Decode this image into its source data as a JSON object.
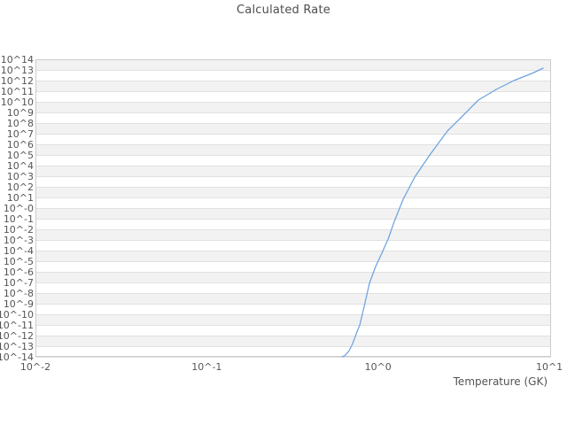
{
  "chart_data": {
    "type": "line",
    "title": "Calculated Rate",
    "xlabel": "Temperature (GK)",
    "ylabel": "",
    "x_scale": "log",
    "y_scale": "log",
    "xlim_log10": [
      -2,
      1.01
    ],
    "ylim_log10": [
      -14,
      14
    ],
    "grid": {
      "banded": true,
      "band_color": "#f2f2f2",
      "row_alt_color": "#ffffff",
      "line_color": "#e1e1e1",
      "spine_color": "#cccccc",
      "vertical_gridlines": false
    },
    "text_color": "#555555",
    "x_ticks": [
      {
        "label": "10^-2",
        "log10": -2
      },
      {
        "label": "10^-1",
        "log10": -1
      },
      {
        "label": "10^0",
        "log10": 0
      },
      {
        "label": "10^1",
        "log10": 1
      }
    ],
    "y_ticks": [
      {
        "label": "10^14",
        "log10": 14
      },
      {
        "label": "10^13",
        "log10": 13
      },
      {
        "label": "10^12",
        "log10": 12
      },
      {
        "label": "10^11",
        "log10": 11
      },
      {
        "label": "10^10",
        "log10": 10
      },
      {
        "label": "10^9",
        "log10": 9
      },
      {
        "label": "10^8",
        "log10": 8
      },
      {
        "label": "10^7",
        "log10": 7
      },
      {
        "label": "10^6",
        "log10": 6
      },
      {
        "label": "10^5",
        "log10": 5
      },
      {
        "label": "10^4",
        "log10": 4
      },
      {
        "label": "10^3",
        "log10": 3
      },
      {
        "label": "10^2",
        "log10": 2
      },
      {
        "label": "10^1",
        "log10": 1
      },
      {
        "label": "10^-0",
        "log10": 0
      },
      {
        "label": "10^-1",
        "log10": -1
      },
      {
        "label": "10^-2",
        "log10": -2
      },
      {
        "label": "10^-3",
        "log10": -3
      },
      {
        "label": "10^-4",
        "log10": -4
      },
      {
        "label": "10^-5",
        "log10": -5
      },
      {
        "label": "10^-6",
        "log10": -6
      },
      {
        "label": "10^-7",
        "log10": -7
      },
      {
        "label": "10^-8",
        "log10": -8
      },
      {
        "label": "10^-9",
        "log10": -9
      },
      {
        "label": "10^-10",
        "log10": -10
      },
      {
        "label": "10^-11",
        "log10": -11
      },
      {
        "label": "10^-12",
        "log10": -12
      },
      {
        "label": "10^-13",
        "log10": -13
      },
      {
        "label": "10^-14",
        "log10": -14
      }
    ],
    "series": [
      {
        "name": "calculated-rate",
        "color": "#6ba3e0",
        "line_width": 1.25,
        "temperature_gk": [
          0.617,
          0.646,
          0.678,
          0.711,
          0.746,
          0.782,
          0.83,
          0.891,
          0.968,
          1.052,
          1.145,
          1.245,
          1.403,
          1.637,
          2.004,
          2.541,
          3.041,
          3.855,
          4.898,
          6.209,
          7.889,
          9.204
        ],
        "log10_rate": [
          -14.0,
          -13.83,
          -13.42,
          -12.75,
          -11.83,
          -11.0,
          -9.25,
          -7.08,
          -5.5,
          -4.25,
          -2.92,
          -1.25,
          0.83,
          2.92,
          5.0,
          7.25,
          8.5,
          10.17,
          11.17,
          12.0,
          12.67,
          13.17
        ]
      }
    ]
  }
}
